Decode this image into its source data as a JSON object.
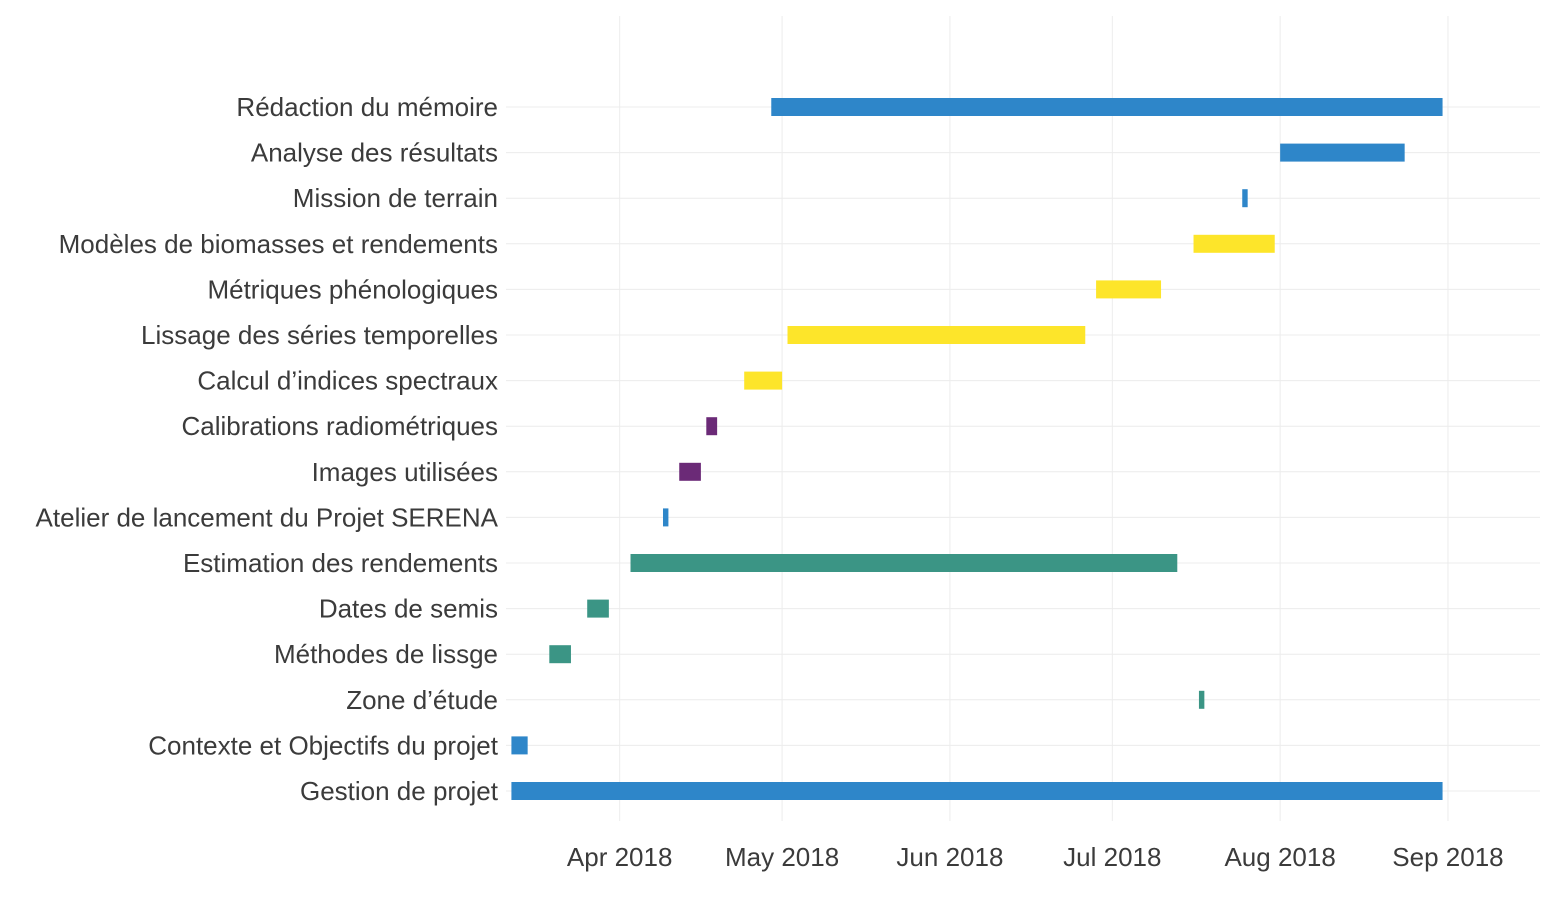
{
  "chart_data": {
    "type": "gantt",
    "title": "",
    "xlabel": "",
    "ylabel": "",
    "xlim": [
      "2018-03-11",
      "2018-09-18"
    ],
    "x_ticks": [
      {
        "date": "2018-04-01",
        "label": "Apr 2018"
      },
      {
        "date": "2018-05-01",
        "label": "May 2018"
      },
      {
        "date": "2018-06-01",
        "label": "Jun 2018"
      },
      {
        "date": "2018-07-01",
        "label": "Jul 2018"
      },
      {
        "date": "2018-08-01",
        "label": "Aug 2018"
      },
      {
        "date": "2018-09-01",
        "label": "Sep 2018"
      }
    ],
    "grid": true,
    "legend": "none",
    "colors": {
      "blue": "#2e86c9",
      "teal": "#3b9585",
      "purple": "#6b2a77",
      "yellow": "#fde52a"
    },
    "tasks": [
      {
        "label": "Rédaction du mémoire",
        "start": "2018-04-29",
        "end": "2018-08-31",
        "color": "blue"
      },
      {
        "label": "Analyse des résultats",
        "start": "2018-08-01",
        "end": "2018-08-24",
        "color": "blue"
      },
      {
        "label": "Mission de terrain",
        "start": "2018-07-25",
        "end": "2018-07-26",
        "color": "blue"
      },
      {
        "label": "Modèles de biomasses et rendements",
        "start": "2018-07-16",
        "end": "2018-07-31",
        "color": "yellow"
      },
      {
        "label": "Métriques phénologiques",
        "start": "2018-06-28",
        "end": "2018-07-10",
        "color": "yellow"
      },
      {
        "label": "Lissage des séries temporelles",
        "start": "2018-05-02",
        "end": "2018-06-26",
        "color": "yellow"
      },
      {
        "label": "Calcul d’indices spectraux",
        "start": "2018-04-24",
        "end": "2018-05-01",
        "color": "yellow"
      },
      {
        "label": "Calibrations radiométriques",
        "start": "2018-04-17",
        "end": "2018-04-19",
        "color": "purple"
      },
      {
        "label": "Images utilisées",
        "start": "2018-04-12",
        "end": "2018-04-16",
        "color": "purple"
      },
      {
        "label": "Atelier de lancement du Projet SERENA",
        "start": "2018-04-09",
        "end": "2018-04-10",
        "color": "blue"
      },
      {
        "label": "Estimation des rendements",
        "start": "2018-04-03",
        "end": "2018-07-13",
        "color": "teal"
      },
      {
        "label": "Dates de semis",
        "start": "2018-03-26",
        "end": "2018-03-30",
        "color": "teal"
      },
      {
        "label": "Méthodes de lissge",
        "start": "2018-03-19",
        "end": "2018-03-23",
        "color": "teal"
      },
      {
        "label": "Zone d’étude",
        "start": "2018-07-17",
        "end": "2018-07-18",
        "color": "teal"
      },
      {
        "label": "Contexte et Objectifs du projet",
        "start": "2018-03-12",
        "end": "2018-03-15",
        "color": "blue"
      },
      {
        "label": "Gestion de projet",
        "start": "2018-03-12",
        "end": "2018-08-31",
        "color": "blue"
      }
    ]
  }
}
